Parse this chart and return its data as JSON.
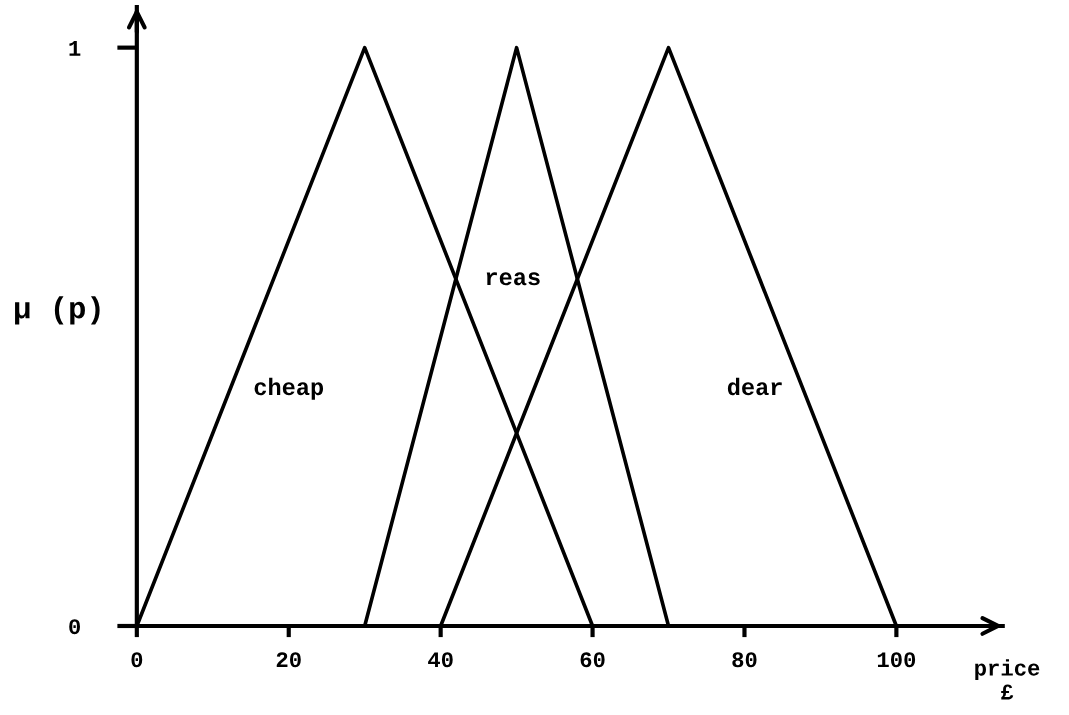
{
  "chart_data": {
    "type": "line",
    "xlabel": "price\n£",
    "ylabel": "μ (p)",
    "series": [
      {
        "name": "cheap",
        "color": "#000000",
        "x": [
          0,
          30,
          60
        ],
        "values": [
          0,
          1,
          0
        ]
      },
      {
        "name": "reas",
        "color": "#000000",
        "x": [
          30,
          50,
          70
        ],
        "values": [
          0,
          1,
          0
        ]
      },
      {
        "name": "dear",
        "color": "#000000",
        "x": [
          40,
          70,
          100
        ],
        "values": [
          0,
          1,
          0
        ]
      }
    ],
    "xlim": [
      0,
      114
    ],
    "ylim": [
      0,
      1.07
    ],
    "xticks": [
      0,
      20,
      40,
      60,
      80,
      100
    ],
    "yticks": [
      0,
      1
    ],
    "grid": false,
    "legend": false,
    "marker": "none",
    "line_style": "solid"
  }
}
